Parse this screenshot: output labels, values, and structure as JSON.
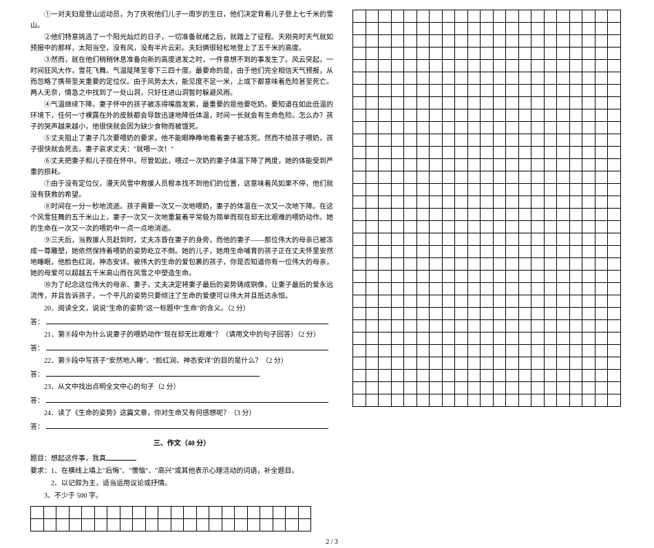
{
  "paragraphs": {
    "p1": "①一对夫妇是登山运动员，为了庆祝他们儿子一周岁的生日，他们决定背着儿子登上七千米的雪山。",
    "p2": "②他们特意挑选了一个阳光灿烂的日子，一切准备就绪之后，就踏上了征程。天刚亮时天气就如预报中的那样，太阳当空，没有风，没有半片云彩。夫妇俩很轻松地登上了五千米的高度。",
    "p3": "③然而，就在他们稍稍休息准备向新的高度进发之时，一件意想不到的事发生了。风云突起，一时间狂风大作，雪花飞舞。气温陡降至零下三四十度。最要命的是，由于他们完全相信天气预报，从而忽略了携带至关重要的定位仪。由于风势太大，能见度不足一米，上或下都意味着危险甚至死亡。两人无奈，情急之中找到了一处山洞，只好住进山洞暂时躲避风雨。",
    "p4": "④气温继续下降。妻子怀中的孩子被冻得嘴唇发紫，最重要的是他要吃奶。要知道在如此低温的环境下，任何一寸裸露在外的皮肤都会导致迅速地降低体温，时间一长就会有生命危险。怎么办？孩子的哭声越来越小，他很快就会因为缺少食物而被饿死。",
    "p5": "⑤丈夫阻止了妻子几次要喂奶的要求，他不能眼睁睁地看着妻子被冻死。然而不给孩子喂奶，孩子很快就会死去。妻子哀求丈夫：\"就喂一次！\"",
    "p6": "⑥丈夫把妻子和儿子揽在怀中。尽管如此，喂过一次奶的妻子体温下降了两度，她的体能受到严重的损耗。",
    "p7": "⑦由于没有定位仪，漫天风雪中救援人员根本找不到他们的位置，这意味着风如果不停，他们就没有获救的希望。",
    "p8": "⑧时间在一分一秒地流逝。孩子需要一次又一次地喂奶，妻子的体温在一次又一次地下降。在这个风雪狂舞的五千米山上，妻子一次又一次地重复着平常极为简单而现在却无比艰难的喂奶动作。她的生命在一次又一次的喂奶中一点一点地消逝。",
    "p9": "⑨三天后，当救援人员赶到时，丈夫冻昏在妻子的身旁，而他的妻子——那位伟大的母亲已被冻成一尊雕塑，她依然保持着喂奶的姿势屹立不倒。她的儿子，她用生命哺育的孩子正在丈夫怀里安然地睡眠，他脸色红润，神态安详。被伟大的生命的爱包裹的孩子，你是否知道你有一位伟大的母亲，她的母爱可以超越五千米高山而在风雪之中塑造生命。",
    "p10": "⑩为了纪念这位伟大的母亲、妻子，丈夫决定将妻子最后的姿势铸成铜像，让妻子最后的爱永远流传，并且告诉孩子，一个平凡的姿势只要倾注了生命的爱便可以伟大并且抵达永恒。"
  },
  "questions": {
    "q20": "20．阅读全文，说说\"生命的姿势\"这一标题中\"生命\"的含义。（2 分）",
    "q21": "21．第⑧段中为什么说妻子的喂奶动作\"现在却无比艰难\"？（请用文中的句子回答）（2 分）",
    "q22": "22．第⑨段中写孩子\"安然地入睡\"、\"脸红润、神态安详\"的目的是什么？（2 分）",
    "q23": "23．从文中找出点明全文中心的句子（2 分）",
    "q24": "24．读了《生命的姿势》这篇文章，你对生命又有何感想呢？（3 分）",
    "ans_label": "答："
  },
  "composition": {
    "section_title": "三、作文（40 分）",
    "topic_prefix": "题目：想起这件事，我真",
    "req_label": "要求：",
    "req1": "1、在横线上填上\"后悔\"、\"懊恼\"、\"高兴\"或其他表示心理活动的词语，补全题目。",
    "req2": "2、以记叙为主，适当运用议论或抒情。",
    "req3": "3、不少于 500 字。"
  },
  "grid": {
    "left_rows": 2,
    "left_cols": 22,
    "right_rows": 32,
    "right_cols": 21,
    "cell_size": 18
  },
  "footer": "2 / 3",
  "colors": {
    "text": "#000000",
    "background": "#ffffff",
    "border": "#000000"
  },
  "typography": {
    "font_family": "SimSun",
    "font_size_pt": 10,
    "line_height": 1.6
  }
}
